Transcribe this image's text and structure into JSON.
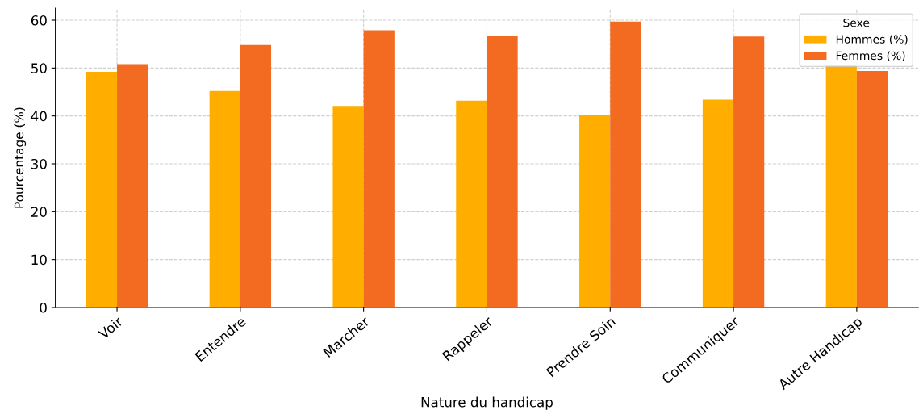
{
  "chart_data": {
    "type": "bar",
    "xlabel": "Nature du handicap",
    "ylabel": "Pourcentage (%)",
    "legend_title": "Sexe",
    "categories": [
      "Voir",
      "Entendre",
      "Marcher",
      "Rappeler",
      "Prendre Soin",
      "Communiquer",
      "Autre Handicap"
    ],
    "series": [
      {
        "name": "Hommes (%)",
        "color": "#ffae00",
        "values": [
          49.2,
          45.2,
          42.1,
          43.2,
          40.3,
          43.4,
          50.6
        ]
      },
      {
        "name": "Femmes (%)",
        "color": "#f26b21",
        "values": [
          50.8,
          54.8,
          57.9,
          56.8,
          59.7,
          56.6,
          49.4
        ]
      }
    ],
    "ylim": [
      0,
      62.5
    ],
    "yticks": [
      0,
      10,
      20,
      30,
      40,
      50,
      60
    ],
    "grid": true,
    "legend": "top right"
  }
}
